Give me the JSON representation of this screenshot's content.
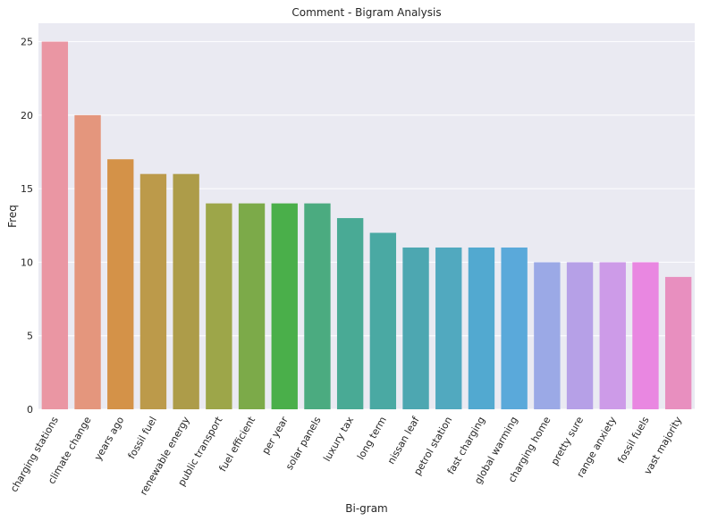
{
  "chart_data": {
    "type": "bar",
    "title": "Comment - Bigram Analysis",
    "xlabel": "Bi-gram",
    "ylabel": "Freq",
    "ylim": [
      0,
      26.25
    ],
    "yticks": [
      0,
      5,
      10,
      15,
      20,
      25
    ],
    "grid": true,
    "categories": [
      "charging stations",
      "climate change",
      "years ago",
      "fossil fuel",
      "renewable energy",
      "public transport",
      "fuel efficient",
      "per year",
      "solar panels",
      "luxury tax",
      "long term",
      "nissan leaf",
      "petrol station",
      "fast charging",
      "global warming",
      "charging home",
      "pretty sure",
      "range anxiety",
      "fossil fuels",
      "vast majority"
    ],
    "values": [
      25,
      20,
      17,
      16,
      16,
      14,
      14,
      14,
      14,
      13,
      12,
      11,
      11,
      11,
      11,
      10,
      10,
      10,
      10,
      9
    ],
    "colors": [
      "#ea96a3",
      "#e4967d",
      "#d49248",
      "#bc9a4a",
      "#ad9c49",
      "#9da649",
      "#7caa49",
      "#4aaf4a",
      "#4bab80",
      "#49aa95",
      "#4aa9a3",
      "#4da7b1",
      "#51a9bf",
      "#52a9d0",
      "#5aa9da",
      "#9ba9e6",
      "#b6a0e7",
      "#cd9be8",
      "#e987e1",
      "#e88fbf"
    ]
  }
}
